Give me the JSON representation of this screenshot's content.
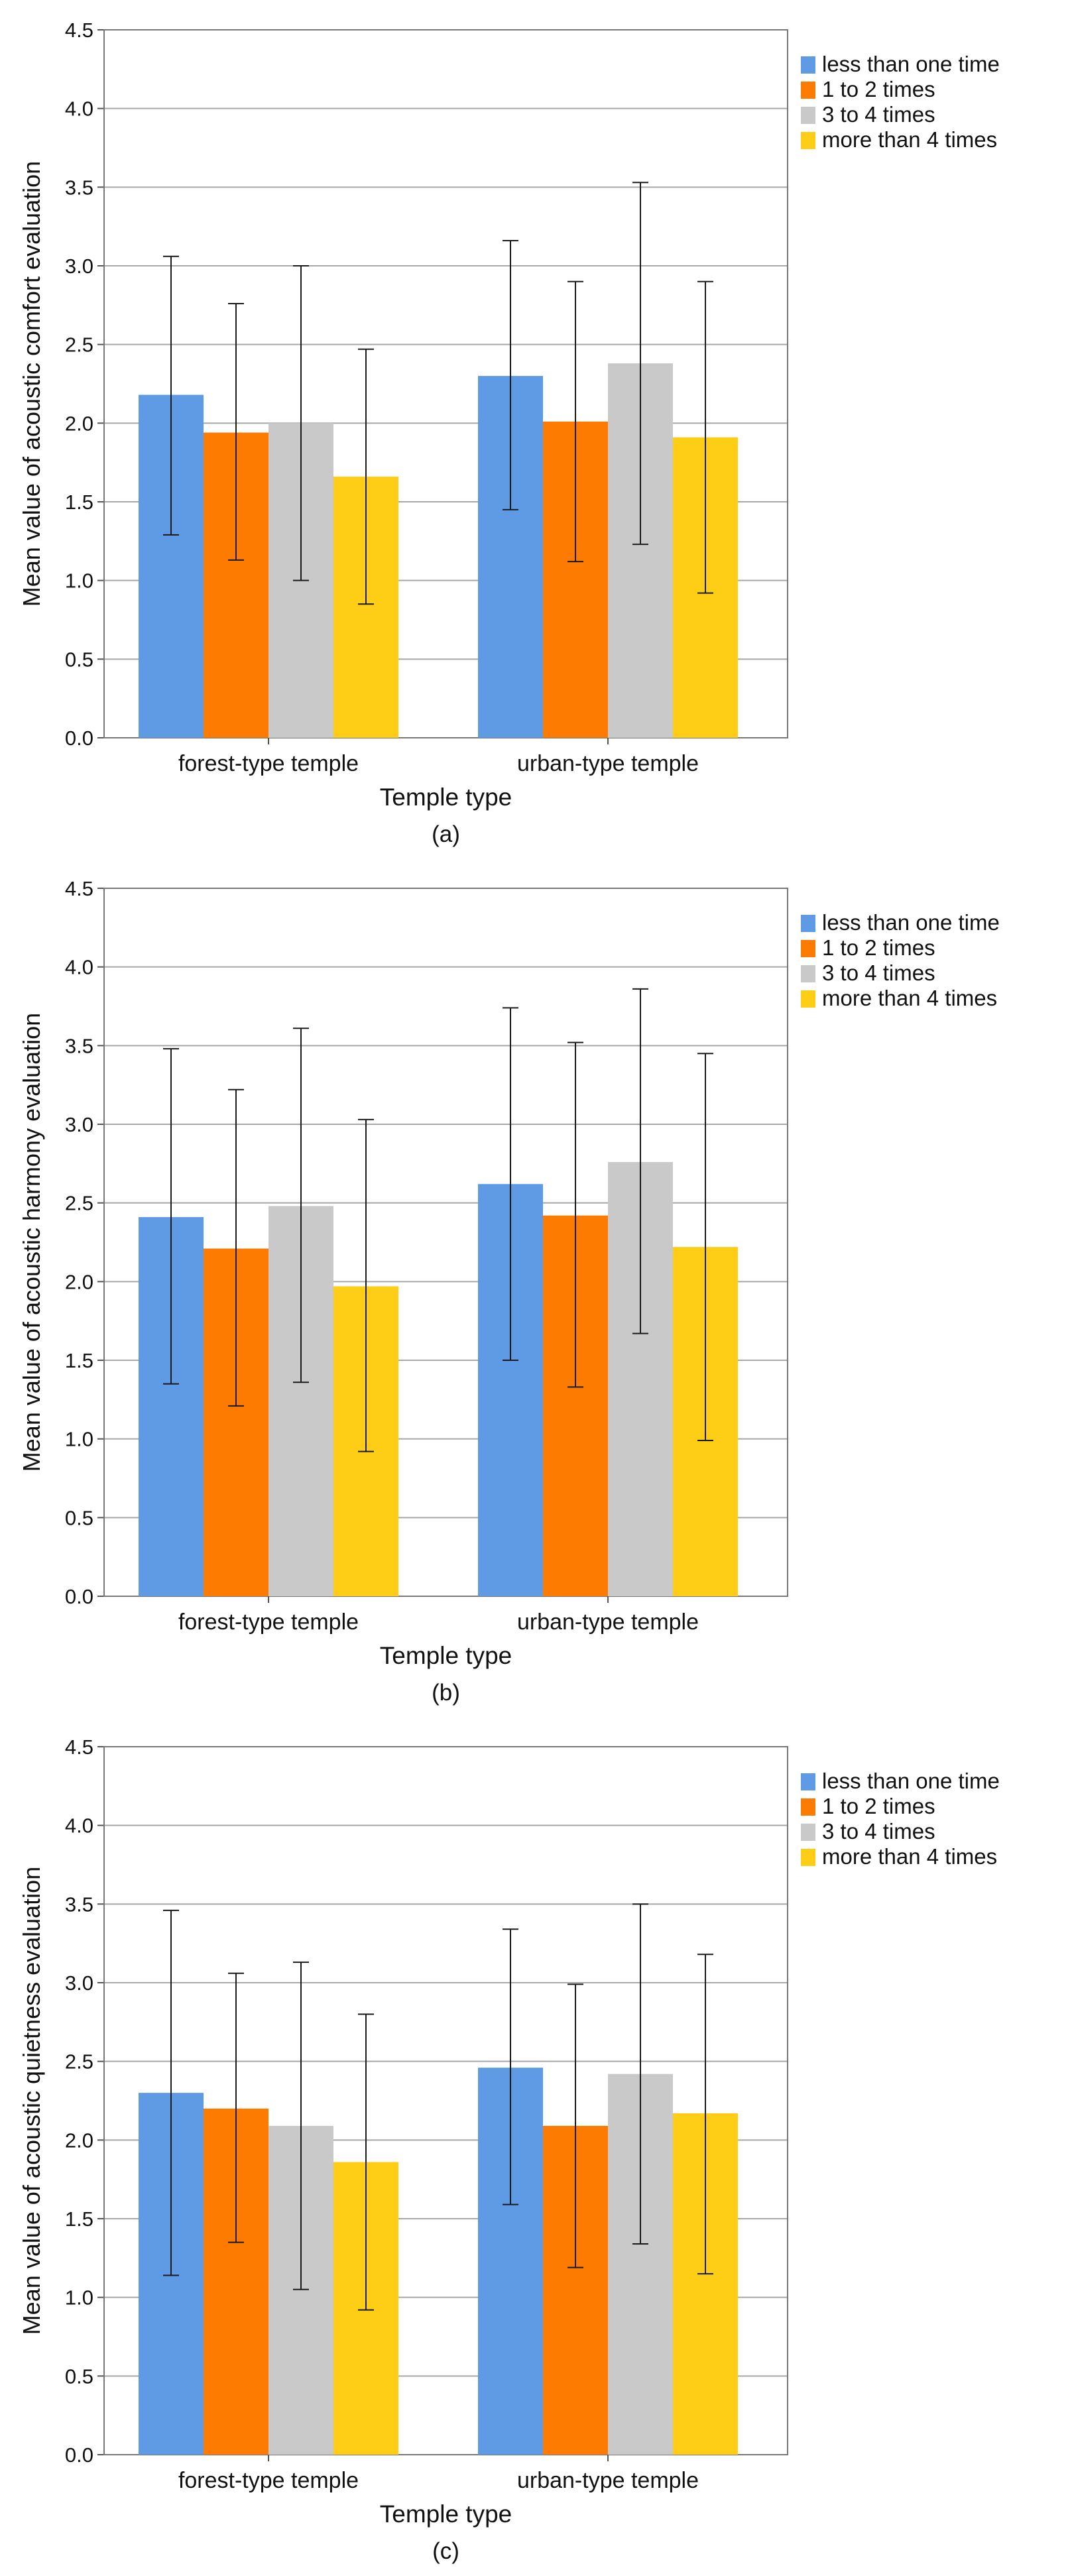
{
  "chart_data": [
    {
      "type": "bar",
      "panel_label": "(a)",
      "title": "",
      "xlabel": "Temple type",
      "ylabel": "Mean value of acoustic comfort evaluation",
      "ylim": [
        0,
        4.5
      ],
      "yticks": [
        "0.0",
        "0.5",
        "1.0",
        "1.5",
        "2.0",
        "2.5",
        "3.0",
        "3.5",
        "4.0",
        "4.5"
      ],
      "grid": true,
      "legend_position": "top-right, outside plot",
      "categories": [
        "forest-type temple",
        "urban-type temple"
      ],
      "series": [
        {
          "name": "less than one time",
          "color": "#5f9be5",
          "values": [
            2.18,
            2.3
          ],
          "error_low": [
            1.29,
            1.45
          ],
          "error_high": [
            3.06,
            3.16
          ]
        },
        {
          "name": "1 to 2 times",
          "color": "#fc7b00",
          "values": [
            1.94,
            2.01
          ],
          "error_low": [
            1.13,
            1.12
          ],
          "error_high": [
            2.76,
            2.9
          ]
        },
        {
          "name": "3 to 4 times",
          "color": "#c9c9c9",
          "values": [
            2.0,
            2.38
          ],
          "error_low": [
            1.0,
            1.23
          ],
          "error_high": [
            3.0,
            3.53
          ]
        },
        {
          "name": "more than 4 times",
          "color": "#fecd16",
          "values": [
            1.66,
            1.91
          ],
          "error_low": [
            0.85,
            0.92
          ],
          "error_high": [
            2.47,
            2.9
          ]
        }
      ]
    },
    {
      "type": "bar",
      "panel_label": "(b)",
      "title": "",
      "xlabel": "Temple type",
      "ylabel": "Mean value of acoustic harmony evaluation",
      "ylim": [
        0,
        4.5
      ],
      "yticks": [
        "0.0",
        "0.5",
        "1.0",
        "1.5",
        "2.0",
        "2.5",
        "3.0",
        "3.5",
        "4.0",
        "4.5"
      ],
      "grid": true,
      "legend_position": "top-right, outside plot",
      "categories": [
        "forest-type temple",
        "urban-type temple"
      ],
      "series": [
        {
          "name": "less than one time",
          "color": "#5f9be5",
          "values": [
            2.41,
            2.62
          ],
          "error_low": [
            1.35,
            1.5
          ],
          "error_high": [
            3.48,
            3.74
          ]
        },
        {
          "name": "1 to 2 times",
          "color": "#fc7b00",
          "values": [
            2.21,
            2.42
          ],
          "error_low": [
            1.21,
            1.33
          ],
          "error_high": [
            3.22,
            3.52
          ]
        },
        {
          "name": "3 to 4 times",
          "color": "#c9c9c9",
          "values": [
            2.48,
            2.76
          ],
          "error_low": [
            1.36,
            1.67
          ],
          "error_high": [
            3.61,
            3.86
          ]
        },
        {
          "name": "more than 4 times",
          "color": "#fecd16",
          "values": [
            1.97,
            2.22
          ],
          "error_low": [
            0.92,
            0.99
          ],
          "error_high": [
            3.03,
            3.45
          ]
        }
      ]
    },
    {
      "type": "bar",
      "panel_label": "(c)",
      "title": "",
      "xlabel": "Temple type",
      "ylabel": "Mean value of acoustic quietness evaluation",
      "ylim": [
        0,
        4.5
      ],
      "yticks": [
        "0.0",
        "0.5",
        "1.0",
        "1.5",
        "2.0",
        "2.5",
        "3.0",
        "3.5",
        "4.0",
        "4.5"
      ],
      "grid": true,
      "legend_position": "top-right, outside plot",
      "categories": [
        "forest-type temple",
        "urban-type temple"
      ],
      "series": [
        {
          "name": "less than one time",
          "color": "#5f9be5",
          "values": [
            2.3,
            2.46
          ],
          "error_low": [
            1.14,
            1.59
          ],
          "error_high": [
            3.46,
            3.34
          ]
        },
        {
          "name": "1 to 2 times",
          "color": "#fc7b00",
          "values": [
            2.2,
            2.09
          ],
          "error_low": [
            1.35,
            1.19
          ],
          "error_high": [
            3.06,
            2.99
          ]
        },
        {
          "name": "3 to 4 times",
          "color": "#c9c9c9",
          "values": [
            2.09,
            2.42
          ],
          "error_low": [
            1.05,
            1.34
          ],
          "error_high": [
            3.13,
            3.5
          ]
        },
        {
          "name": "more than 4 times",
          "color": "#fecd16",
          "values": [
            1.86,
            2.17
          ],
          "error_low": [
            0.92,
            1.15
          ],
          "error_high": [
            2.8,
            3.18
          ]
        }
      ]
    }
  ]
}
